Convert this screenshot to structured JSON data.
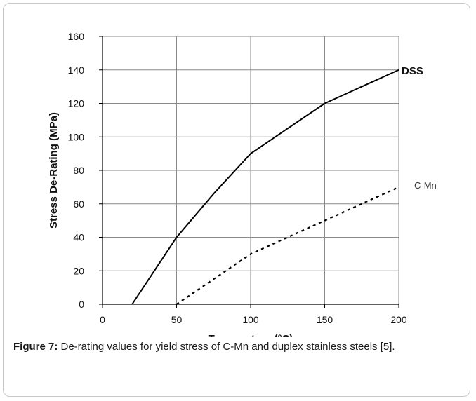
{
  "chart_data": {
    "type": "line",
    "xlabel": "Temperature (°C)",
    "ylabel": "Stress De-Rating (MPa)",
    "xlim": [
      0,
      200
    ],
    "ylim": [
      0,
      160
    ],
    "x_ticks": [
      0,
      50,
      100,
      150,
      200
    ],
    "y_ticks": [
      0,
      20,
      40,
      60,
      80,
      100,
      120,
      140,
      160
    ],
    "grid": true,
    "series": [
      {
        "name": "DSS",
        "style": "solid",
        "color": "#000000",
        "x": [
          20,
          50,
          75,
          100,
          125,
          150,
          200
        ],
        "y": [
          0,
          40,
          66,
          90,
          105,
          120,
          140
        ]
      },
      {
        "name": "C-Mn",
        "style": "dotted",
        "color": "#000000",
        "x": [
          50,
          100,
          150,
          200
        ],
        "y": [
          0,
          30,
          50,
          70
        ]
      }
    ]
  },
  "caption": {
    "label": "Figure 7:",
    "text": " De-rating values for yield stress of C-Mn and duplex stainless steels [5]."
  }
}
